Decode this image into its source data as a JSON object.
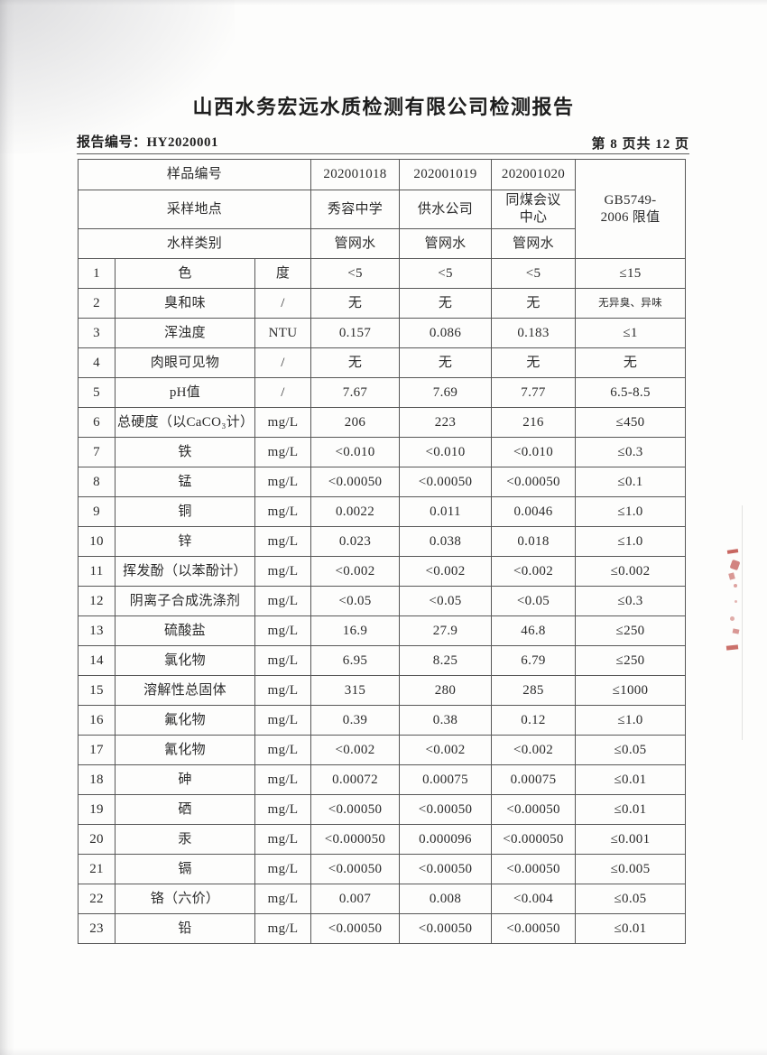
{
  "page": {
    "title": "山西水务宏远水质检测有限公司检测报告",
    "report_no_label": "报告编号：",
    "report_no_value": "HY2020001",
    "page_indicator": "第 8 页共 12 页"
  },
  "artifacts": {
    "stamp_color": "#b5342e",
    "stamp_name": "red-seal-remnant"
  },
  "table": {
    "header": {
      "row1_label": "样品编号",
      "row2_label": "采样地点",
      "row3_label": "水样类别",
      "sample_ids": [
        "202001018",
        "202001019",
        "202001020"
      ],
      "locations": [
        "秀容中学",
        "供水公司",
        "同煤会议\n中心"
      ],
      "sample_types": [
        "管网水",
        "管网水",
        "管网水"
      ],
      "limit_header": "GB5749-\n2006 限值"
    },
    "rows": [
      {
        "no": "1",
        "item": "色",
        "unit": "度",
        "values": [
          "<5",
          "<5",
          "<5"
        ],
        "limit": "≤15"
      },
      {
        "no": "2",
        "item": "臭和味",
        "unit": "/",
        "values": [
          "无",
          "无",
          "无"
        ],
        "limit": "无异臭、异味"
      },
      {
        "no": "3",
        "item": "浑浊度",
        "unit": "NTU",
        "values": [
          "0.157",
          "0.086",
          "0.183"
        ],
        "limit": "≤1"
      },
      {
        "no": "4",
        "item": "肉眼可见物",
        "unit": "/",
        "values": [
          "无",
          "无",
          "无"
        ],
        "limit": "无"
      },
      {
        "no": "5",
        "item": "pH值",
        "unit": "/",
        "values": [
          "7.67",
          "7.69",
          "7.77"
        ],
        "limit": "6.5-8.5"
      },
      {
        "no": "6",
        "item": "总硬度（以CaCO₃计）",
        "unit": "mg/L",
        "values": [
          "206",
          "223",
          "216"
        ],
        "limit": "≤450"
      },
      {
        "no": "7",
        "item": "铁",
        "unit": "mg/L",
        "values": [
          "<0.010",
          "<0.010",
          "<0.010"
        ],
        "limit": "≤0.3"
      },
      {
        "no": "8",
        "item": "锰",
        "unit": "mg/L",
        "values": [
          "<0.00050",
          "<0.00050",
          "<0.00050"
        ],
        "limit": "≤0.1"
      },
      {
        "no": "9",
        "item": "铜",
        "unit": "mg/L",
        "values": [
          "0.0022",
          "0.011",
          "0.0046"
        ],
        "limit": "≤1.0"
      },
      {
        "no": "10",
        "item": "锌",
        "unit": "mg/L",
        "values": [
          "0.023",
          "0.038",
          "0.018"
        ],
        "limit": "≤1.0"
      },
      {
        "no": "11",
        "item": "挥发酚（以苯酚计）",
        "unit": "mg/L",
        "values": [
          "<0.002",
          "<0.002",
          "<0.002"
        ],
        "limit": "≤0.002"
      },
      {
        "no": "12",
        "item": "阴离子合成洗涤剂",
        "unit": "mg/L",
        "values": [
          "<0.05",
          "<0.05",
          "<0.05"
        ],
        "limit": "≤0.3"
      },
      {
        "no": "13",
        "item": "硫酸盐",
        "unit": "mg/L",
        "values": [
          "16.9",
          "27.9",
          "46.8"
        ],
        "limit": "≤250"
      },
      {
        "no": "14",
        "item": "氯化物",
        "unit": "mg/L",
        "values": [
          "6.95",
          "8.25",
          "6.79"
        ],
        "limit": "≤250"
      },
      {
        "no": "15",
        "item": "溶解性总固体",
        "unit": "mg/L",
        "values": [
          "315",
          "280",
          "285"
        ],
        "limit": "≤1000"
      },
      {
        "no": "16",
        "item": "氟化物",
        "unit": "mg/L",
        "values": [
          "0.39",
          "0.38",
          "0.12"
        ],
        "limit": "≤1.0"
      },
      {
        "no": "17",
        "item": "氰化物",
        "unit": "mg/L",
        "values": [
          "<0.002",
          "<0.002",
          "<0.002"
        ],
        "limit": "≤0.05"
      },
      {
        "no": "18",
        "item": "砷",
        "unit": "mg/L",
        "values": [
          "0.00072",
          "0.00075",
          "0.00075"
        ],
        "limit": "≤0.01"
      },
      {
        "no": "19",
        "item": "硒",
        "unit": "mg/L",
        "values": [
          "<0.00050",
          "<0.00050",
          "<0.00050"
        ],
        "limit": "≤0.01"
      },
      {
        "no": "20",
        "item": "汞",
        "unit": "mg/L",
        "values": [
          "<0.000050",
          "0.000096",
          "<0.000050"
        ],
        "limit": "≤0.001"
      },
      {
        "no": "21",
        "item": "镉",
        "unit": "mg/L",
        "values": [
          "<0.00050",
          "<0.00050",
          "<0.00050"
        ],
        "limit": "≤0.005"
      },
      {
        "no": "22",
        "item": "铬（六价）",
        "unit": "mg/L",
        "values": [
          "0.007",
          "0.008",
          "<0.004"
        ],
        "limit": "≤0.05"
      },
      {
        "no": "23",
        "item": "铅",
        "unit": "mg/L",
        "values": [
          "<0.00050",
          "<0.00050",
          "<0.00050"
        ],
        "limit": "≤0.01"
      }
    ]
  }
}
